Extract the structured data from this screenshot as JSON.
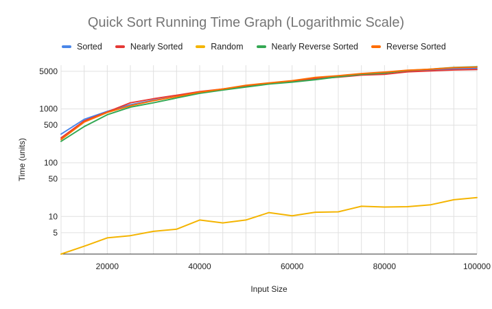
{
  "chart_data": {
    "type": "line",
    "title": "Quick Sort Running Time Graph (Logarithmic Scale)",
    "xlabel": "Input Size",
    "ylabel": "Time (units)",
    "y_scale": "log",
    "xlim": [
      10000,
      100000
    ],
    "ylim": [
      2,
      6500
    ],
    "x_ticks": [
      "20000",
      "40000",
      "60000",
      "80000",
      "100000"
    ],
    "x_tick_values": [
      20000,
      40000,
      60000,
      80000,
      100000
    ],
    "y_ticks": [
      "5",
      "10",
      "50",
      "100",
      "500",
      "1000",
      "5000"
    ],
    "y_tick_values": [
      5,
      10,
      50,
      100,
      500,
      1000,
      5000
    ],
    "grid": true,
    "legend_position": "top",
    "x": [
      10000,
      15000,
      20000,
      25000,
      30000,
      35000,
      40000,
      45000,
      50000,
      55000,
      60000,
      65000,
      70000,
      75000,
      80000,
      85000,
      90000,
      95000,
      100000
    ],
    "series": [
      {
        "name": "Sorted",
        "color": "#4a86e8",
        "values": [
          340,
          640,
          900,
          1200,
          1450,
          1700,
          2000,
          2300,
          2650,
          3000,
          3300,
          3700,
          4050,
          4450,
          4800,
          5100,
          5300,
          5600,
          5700
        ]
      },
      {
        "name": "Nearly Sorted",
        "color": "#e53935",
        "values": [
          290,
          600,
          880,
          1300,
          1550,
          1800,
          2100,
          2350,
          2650,
          2950,
          3250,
          3650,
          3900,
          4250,
          4400,
          4900,
          5100,
          5300,
          5400
        ]
      },
      {
        "name": "Random",
        "color": "#f4b400",
        "values": [
          2,
          2.8,
          4,
          4.4,
          5.3,
          5.8,
          8.6,
          7.6,
          8.6,
          11.8,
          10.3,
          12,
          12.2,
          15.5,
          15,
          15.2,
          16.5,
          20.5,
          22.5
        ]
      },
      {
        "name": "Nearly Reverse Sorted",
        "color": "#34a853",
        "values": [
          250,
          470,
          780,
          1080,
          1300,
          1600,
          1950,
          2250,
          2550,
          2900,
          3150,
          3500,
          3950,
          4400,
          4650,
          5200,
          5500,
          5900,
          6100
        ]
      },
      {
        "name": "Reverse Sorted",
        "color": "#ff6d01",
        "values": [
          270,
          570,
          860,
          1150,
          1420,
          1700,
          2050,
          2350,
          2750,
          3050,
          3350,
          3850,
          4150,
          4550,
          4850,
          5250,
          5500,
          5850,
          6000
        ]
      }
    ]
  }
}
